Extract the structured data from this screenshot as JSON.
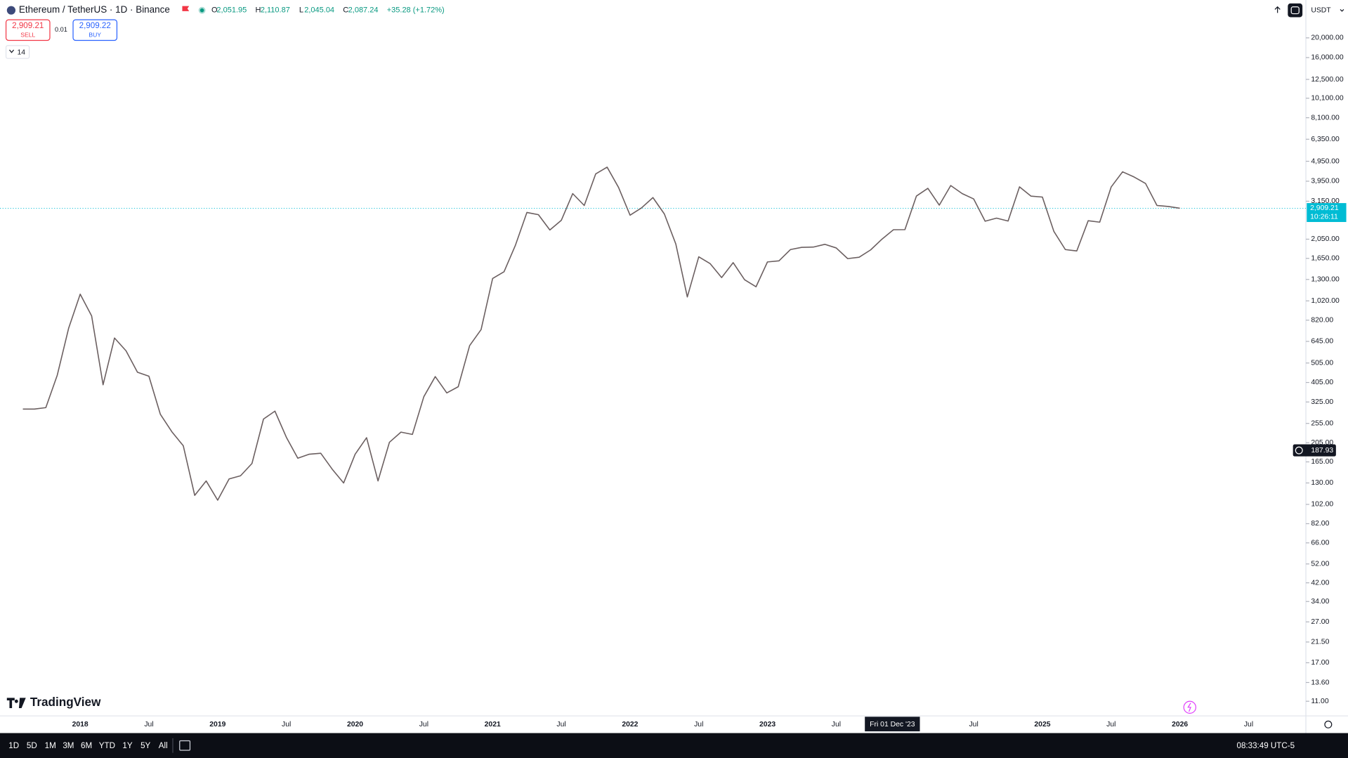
{
  "header": {
    "symbol": "Ethereum / TetherUS · 1D · Binance",
    "ohlc": [
      {
        "key": "O",
        "value": "2,051.95"
      },
      {
        "key": "H",
        "value": "2,110.87"
      },
      {
        "key": "L",
        "value": "2,045.04"
      },
      {
        "key": "C",
        "value": "2,087.24"
      }
    ],
    "change": "+35.28 (+1.72%)"
  },
  "trade": {
    "sell_price": "2,909.21",
    "sell": "SELL",
    "spread": "0.01",
    "buy_price": "2,909.22",
    "buy": "BUY",
    "indicators": "14",
    "currency": "USDT"
  },
  "chart_data": {
    "type": "line",
    "log_scale": true,
    "grid": false,
    "color": "#6b5f60",
    "x": [
      "2017-08",
      "2017-09",
      "2017-10",
      "2017-11",
      "2017-12",
      "2018-01",
      "2018-02",
      "2018-03",
      "2018-04",
      "2018-05",
      "2018-06",
      "2018-07",
      "2018-08",
      "2018-09",
      "2018-10",
      "2018-11",
      "2018-12",
      "2019-01",
      "2019-02",
      "2019-03",
      "2019-04",
      "2019-05",
      "2019-06",
      "2019-07",
      "2019-08",
      "2019-09",
      "2019-10",
      "2019-11",
      "2019-12",
      "2020-01",
      "2020-02",
      "2020-03",
      "2020-04",
      "2020-05",
      "2020-06",
      "2020-07",
      "2020-08",
      "2020-09",
      "2020-10",
      "2020-11",
      "2020-12",
      "2021-01",
      "2021-02",
      "2021-03",
      "2021-04",
      "2021-05",
      "2021-06",
      "2021-07",
      "2021-08",
      "2021-09",
      "2021-10",
      "2021-11",
      "2021-12",
      "2022-01",
      "2022-02",
      "2022-03",
      "2022-04",
      "2022-05",
      "2022-06",
      "2022-07",
      "2022-08",
      "2022-09",
      "2022-10",
      "2022-11",
      "2022-12",
      "2023-01",
      "2023-02",
      "2023-03",
      "2023-04",
      "2023-05",
      "2023-06",
      "2023-07",
      "2023-08",
      "2023-09",
      "2023-10",
      "2023-11",
      "2023-12",
      "2024-01",
      "2024-02",
      "2024-03",
      "2024-04",
      "2024-05",
      "2024-06",
      "2024-07",
      "2024-08",
      "2024-09",
      "2024-10",
      "2024-11",
      "2024-12",
      "2025-01",
      "2025-02",
      "2025-03",
      "2025-04",
      "2025-05",
      "2025-06",
      "2025-07",
      "2025-08",
      "2025-09",
      "2025-10",
      "2025-11",
      "2025-12",
      "2026-01"
    ],
    "values": [
      300,
      300,
      305,
      440,
      750,
      1100,
      860,
      395,
      670,
      580,
      455,
      435,
      283,
      232,
      198,
      113,
      133,
      107,
      136,
      141,
      162,
      268,
      293,
      218,
      172,
      180,
      182,
      152,
      130,
      180,
      217,
      133,
      206,
      231,
      225,
      345,
      433,
      360,
      386,
      615,
      737,
      1314,
      1418,
      1918,
      2773,
      2706,
      2275,
      2536,
      3433,
      3001,
      4288,
      4631,
      3682,
      2688,
      2920,
      3282,
      2727,
      1942,
      1067,
      1679,
      1554,
      1328,
      1572,
      1295,
      1196,
      1585,
      1605,
      1822,
      1869,
      1874,
      1934,
      1856,
      1645,
      1671,
      1815,
      2052,
      2282,
      2283,
      3340,
      3647,
      3014,
      3762,
      3433,
      3232,
      2513,
      2602,
      2518,
      3705,
      3337,
      3300,
      2237,
      1822,
      1794,
      2528,
      2486,
      3698,
      4393,
      4145,
      3848,
      3000,
      2967,
      2909
    ],
    "xlim": [
      "2017-06",
      "2026-12"
    ],
    "xticks": [
      {
        "value": "2018-01",
        "label": "2018"
      },
      {
        "value": "2018-07",
        "label": "Jul"
      },
      {
        "value": "2019-01",
        "label": "2019"
      },
      {
        "value": "2019-07",
        "label": "Jul"
      },
      {
        "value": "2020-01",
        "label": "2020"
      },
      {
        "value": "2020-07",
        "label": "Jul"
      },
      {
        "value": "2021-01",
        "label": "2021"
      },
      {
        "value": "2021-07",
        "label": "Jul"
      },
      {
        "value": "2022-01",
        "label": "2022"
      },
      {
        "value": "2022-07",
        "label": "Jul"
      },
      {
        "value": "2023-01",
        "label": "2023"
      },
      {
        "value": "2023-07",
        "label": "Jul"
      },
      {
        "value": "2024-07",
        "label": "Jul"
      },
      {
        "value": "2025-01",
        "label": "2025"
      },
      {
        "value": "2025-07",
        "label": "Jul"
      },
      {
        "value": "2026-01",
        "label": "2026"
      },
      {
        "value": "2026-07",
        "label": "Jul"
      }
    ],
    "ylim": [
      9.32,
      30690
    ],
    "yticks": [
      {
        "value": 20000,
        "label": "20,000.00"
      },
      {
        "value": 16000,
        "label": "16,000.00"
      },
      {
        "value": 12500,
        "label": "12,500.00"
      },
      {
        "value": 10100,
        "label": "10,100.00"
      },
      {
        "value": 8100,
        "label": "8,100.00"
      },
      {
        "value": 6350,
        "label": "6,350.00"
      },
      {
        "value": 4950,
        "label": "4,950.00"
      },
      {
        "value": 3950,
        "label": "3,950.00"
      },
      {
        "value": 3150,
        "label": "3,150.00"
      },
      {
        "value": 2050,
        "label": "2,050.00"
      },
      {
        "value": 1650,
        "label": "1,650.00"
      },
      {
        "value": 1300,
        "label": "1,300.00"
      },
      {
        "value": 1020,
        "label": "1,020.00"
      },
      {
        "value": 820,
        "label": "820.00"
      },
      {
        "value": 645,
        "label": "645.00"
      },
      {
        "value": 505,
        "label": "505.00"
      },
      {
        "value": 405,
        "label": "405.00"
      },
      {
        "value": 325,
        "label": "325.00"
      },
      {
        "value": 255,
        "label": "255.00"
      },
      {
        "value": 205,
        "label": "205.00"
      },
      {
        "value": 165,
        "label": "165.00"
      },
      {
        "value": 130,
        "label": "130.00"
      },
      {
        "value": 102,
        "label": "102.00"
      },
      {
        "value": 82,
        "label": "82.00"
      },
      {
        "value": 66,
        "label": "66.00"
      },
      {
        "value": 52,
        "label": "52.00"
      },
      {
        "value": 42,
        "label": "42.00"
      },
      {
        "value": 34,
        "label": "34.00"
      },
      {
        "value": 27,
        "label": "27.00"
      },
      {
        "value": 21.5,
        "label": "21.50"
      },
      {
        "value": 17,
        "label": "17.00"
      },
      {
        "value": 13.6,
        "label": "13.60"
      },
      {
        "value": 11,
        "label": "11.00"
      }
    ],
    "last_price": {
      "value": 2909.21,
      "label": "2,909.21"
    },
    "countdown": "10:26:11",
    "crosshair": {
      "price": {
        "value": 187.93,
        "label": "187.93"
      },
      "date": "Fri 01 Dec '23"
    }
  },
  "footer": {
    "brand": "TradingView",
    "ranges": [
      "1D",
      "5D",
      "1M",
      "3M",
      "6M",
      "YTD",
      "1Y",
      "5Y",
      "All"
    ],
    "clock": "08:33:49 UTC-5"
  }
}
